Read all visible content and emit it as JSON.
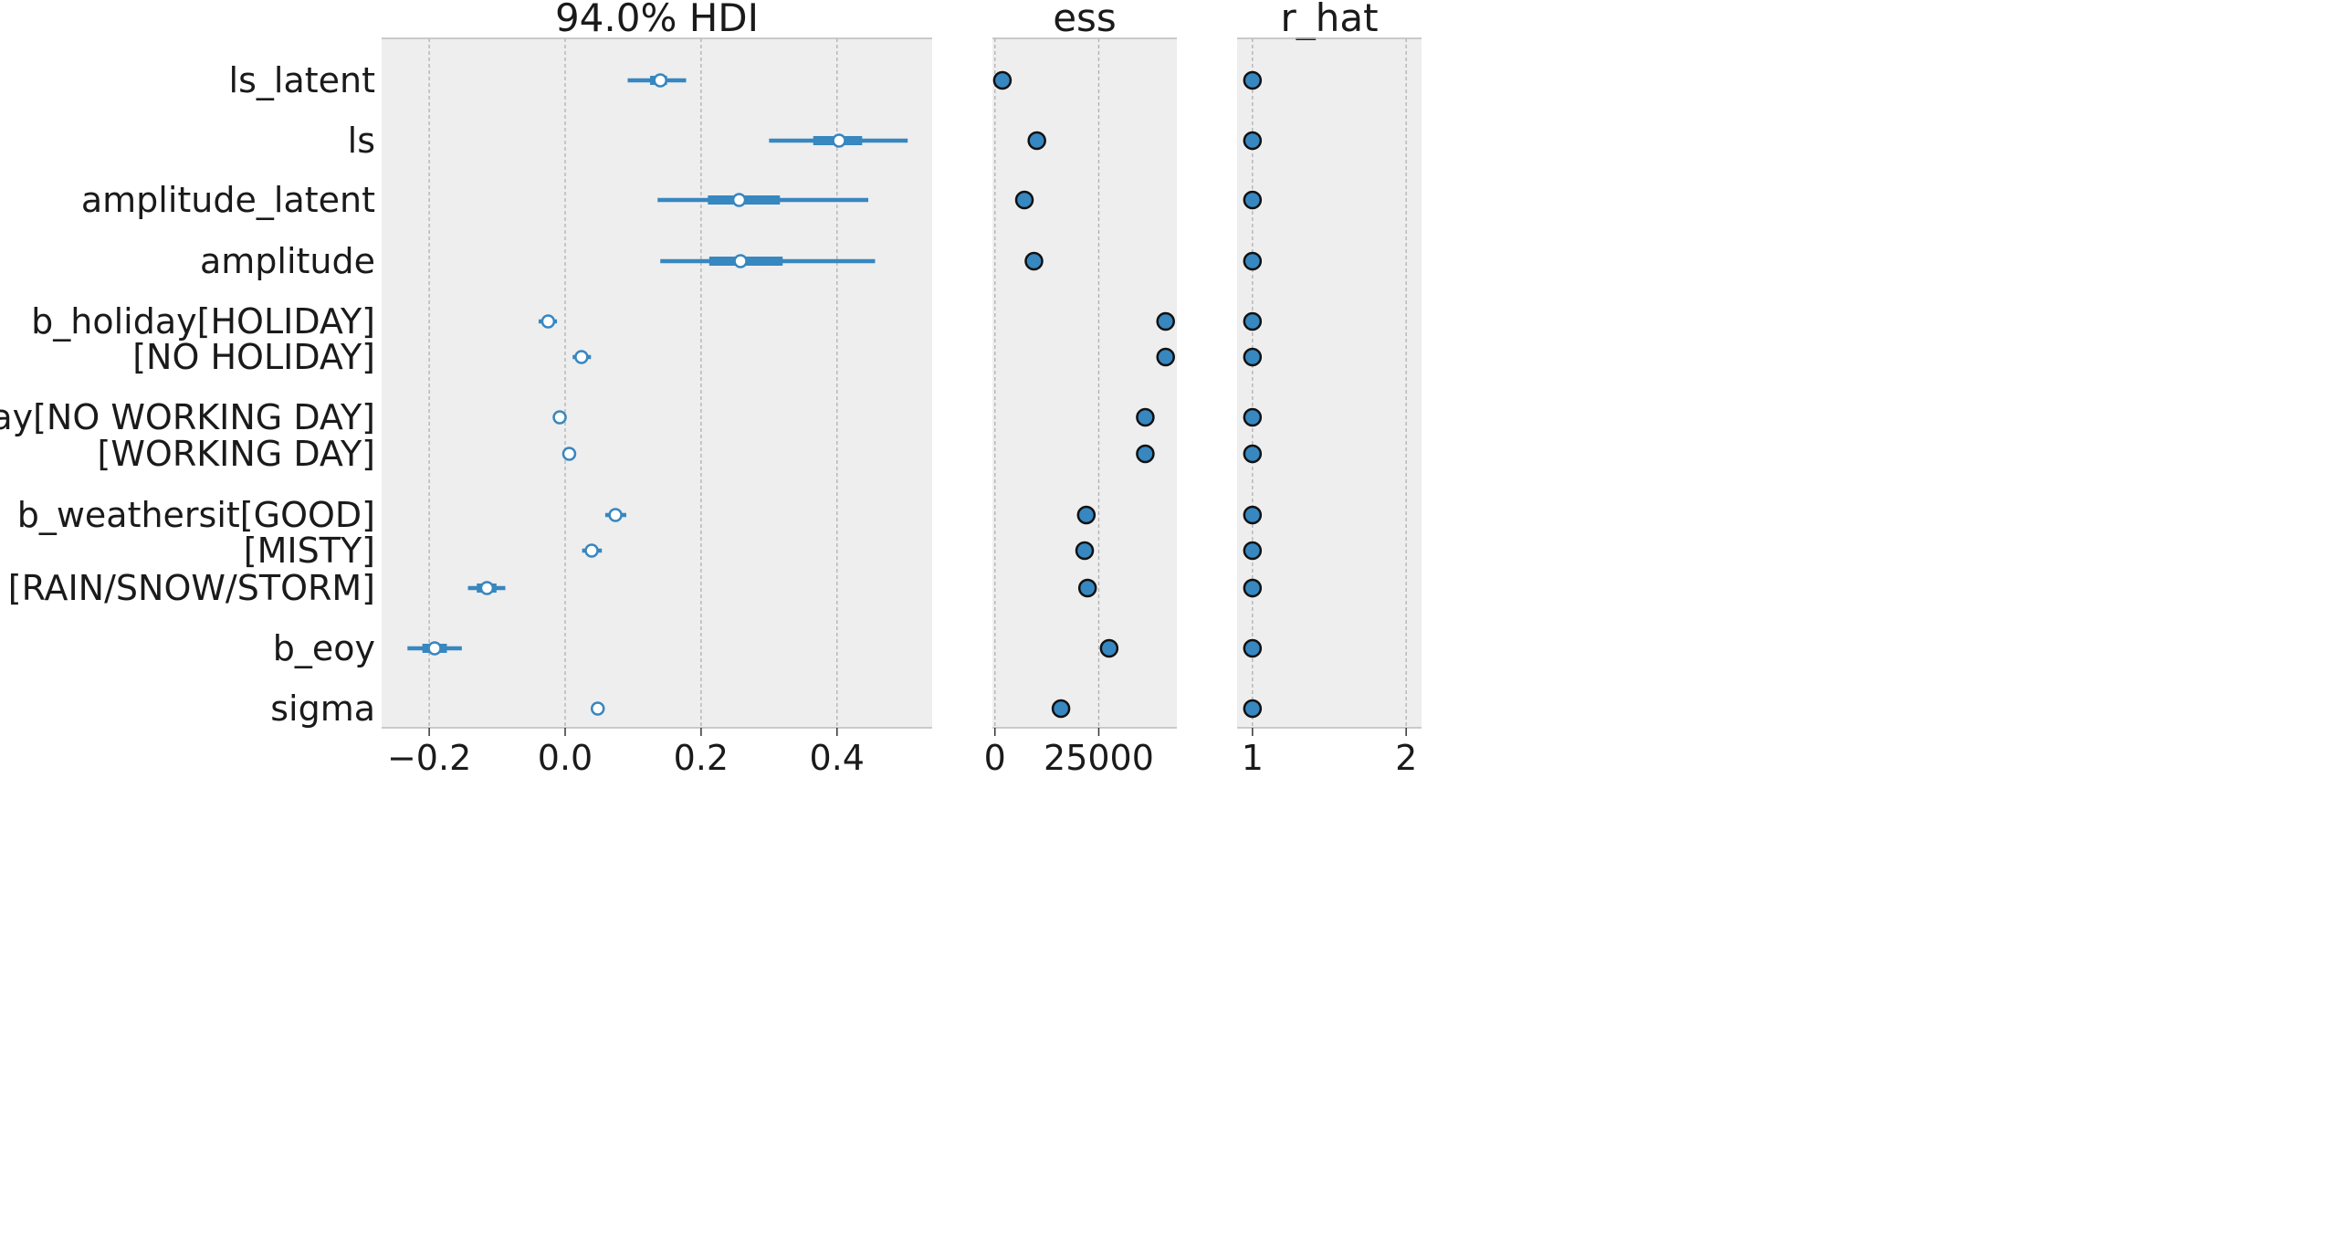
{
  "chart_data": [
    {
      "type": "forest",
      "title": "94.0% HDI",
      "xlabel": "",
      "ylabel": "",
      "xlim": [
        -0.27,
        0.54
      ],
      "xticks": [
        -0.2,
        0.0,
        0.2,
        0.4
      ],
      "xtick_labels": [
        "−0.2",
        "0.0",
        "0.2",
        "0.4"
      ],
      "grid": "vertical dashed",
      "row_labels": [
        "ls_latent",
        "ls",
        "amplitude_latent",
        "amplitude",
        "b_holiday[HOLIDAY]",
        "[NO HOLIDAY]",
        "b_workingday[NO WORKING DAY]",
        "[WORKING DAY]",
        "b_weathersit[GOOD]",
        "[MISTY]",
        "[RAIN/SNOW/STORM]",
        "b_eoy",
        "sigma"
      ],
      "series": [
        {
          "median": 0.14,
          "hdi": [
            0.092,
            0.178
          ],
          "iqr": [
            0.125,
            0.15
          ]
        },
        {
          "median": 0.403,
          "hdi": [
            0.3,
            0.504
          ],
          "iqr": [
            0.365,
            0.437
          ]
        },
        {
          "median": 0.256,
          "hdi": [
            0.136,
            0.446
          ],
          "iqr": [
            0.21,
            0.316
          ]
        },
        {
          "median": 0.258,
          "hdi": [
            0.14,
            0.456
          ],
          "iqr": [
            0.212,
            0.32
          ]
        },
        {
          "median": -0.025,
          "hdi": [
            -0.039,
            -0.012
          ],
          "iqr": [
            -0.031,
            -0.019
          ]
        },
        {
          "median": 0.024,
          "hdi": [
            0.011,
            0.038
          ],
          "iqr": [
            0.018,
            0.03
          ]
        },
        {
          "median": -0.008,
          "hdi": [
            -0.008,
            -0.008
          ],
          "iqr": [
            -0.008,
            -0.008
          ]
        },
        {
          "median": 0.006,
          "hdi": [
            0.006,
            0.006
          ],
          "iqr": [
            0.006,
            0.006
          ]
        },
        {
          "median": 0.074,
          "hdi": [
            0.059,
            0.09
          ],
          "iqr": [
            0.066,
            0.082
          ]
        },
        {
          "median": 0.039,
          "hdi": [
            0.025,
            0.054
          ],
          "iqr": [
            0.032,
            0.046
          ]
        },
        {
          "median": -0.115,
          "hdi": [
            -0.143,
            -0.088
          ],
          "iqr": [
            -0.13,
            -0.101
          ]
        },
        {
          "median": -0.192,
          "hdi": [
            -0.232,
            -0.152
          ],
          "iqr": [
            -0.21,
            -0.174
          ]
        },
        {
          "median": 0.048,
          "hdi": [
            0.048,
            0.048
          ],
          "iqr": [
            0.048,
            0.048
          ]
        }
      ]
    },
    {
      "type": "scatter",
      "title": "ess",
      "xlabel": "",
      "ylabel": "",
      "xlim": [
        -600,
        43800
      ],
      "xticks": [
        0,
        25000
      ],
      "xtick_labels": [
        "0",
        "25000"
      ],
      "grid": "vertical dashed",
      "values": [
        1800,
        10100,
        7100,
        9400,
        41100,
        41100,
        36200,
        36200,
        22000,
        21600,
        22300,
        27500,
        15900
      ]
    },
    {
      "type": "scatter",
      "title": "r_hat",
      "xlabel": "",
      "ylabel": "",
      "xlim": [
        0.9,
        2.1
      ],
      "xticks": [
        1,
        2
      ],
      "xtick_labels": [
        "1",
        "2"
      ],
      "grid": "vertical dashed",
      "values": [
        1,
        1,
        1,
        1,
        1,
        1,
        1,
        1,
        1,
        1,
        1,
        1,
        1
      ]
    }
  ],
  "colors": {
    "axes_face": "#eeeeee",
    "series": "#3787c0",
    "marker_fill": "#3787c0",
    "marker_edge": "#111111",
    "grid": "#b0b0b0",
    "spine": "#bcbcbc",
    "text": "#1a1a1a"
  }
}
